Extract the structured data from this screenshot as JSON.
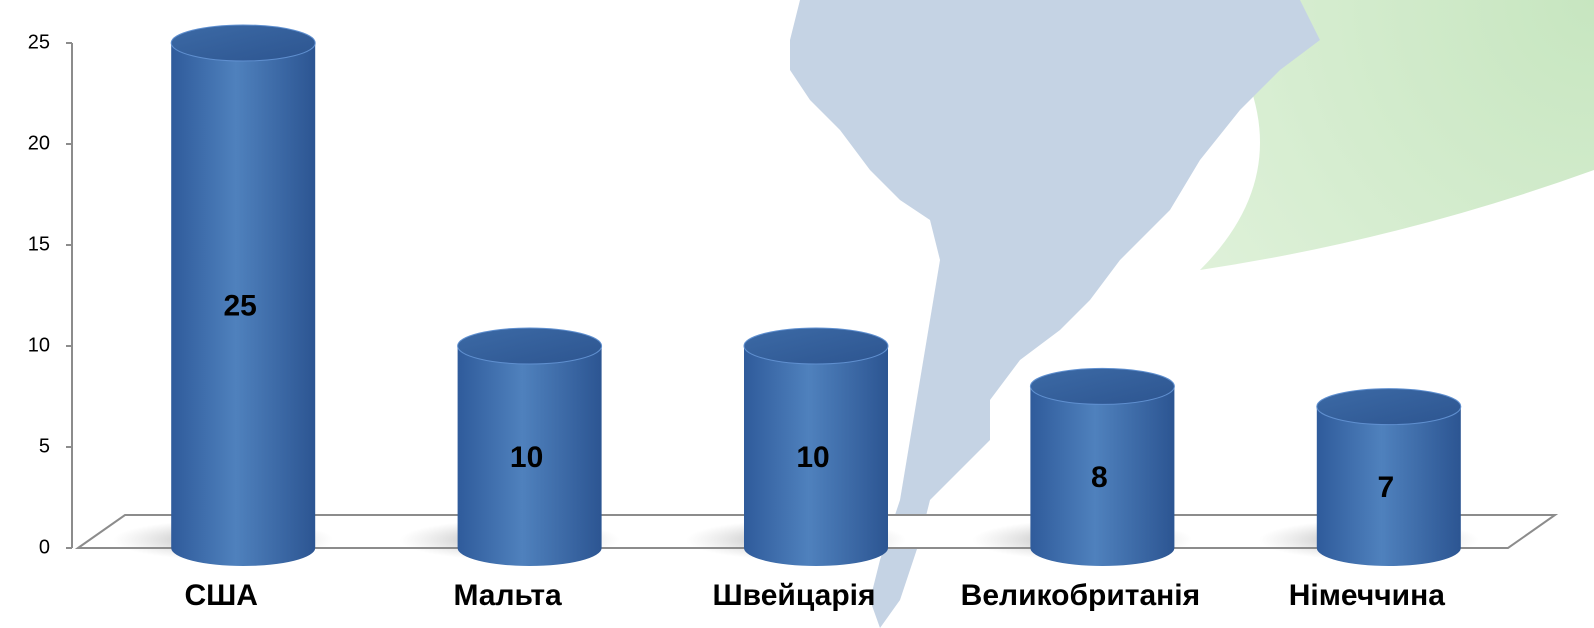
{
  "chart_data": {
    "type": "bar",
    "categories": [
      "США",
      "Мальта",
      "Швейцарія",
      "Великобританія",
      "Німеччина"
    ],
    "values": [
      25,
      10,
      10,
      8,
      7
    ],
    "color": "#4f81bd",
    "ylim": [
      0,
      25
    ],
    "yticks": [
      0,
      5,
      10,
      15,
      20,
      25
    ],
    "grid": false
  }
}
